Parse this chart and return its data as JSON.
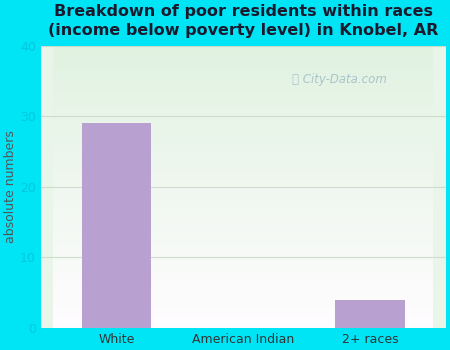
{
  "categories": [
    "White",
    "American Indian",
    "2+ races"
  ],
  "values": [
    29,
    0,
    4
  ],
  "bar_color": "#b8a0d0",
  "title": "Breakdown of poor residents within races\n(income below poverty level) in Knobel, AR",
  "ylabel": "absolute numbers",
  "ylim": [
    0,
    40
  ],
  "yticks": [
    0,
    10,
    20,
    30,
    40
  ],
  "background_outer": "#00e5f5",
  "plot_bg_topleft": "#d8f0d8",
  "plot_bg_bottomright": "#f8fcf8",
  "grid_color": "#e0ece0",
  "title_fontsize": 11.5,
  "ylabel_fontsize": 9,
  "tick_fontsize": 9,
  "tick_color": "#00c8e0",
  "watermark_text": "City-Data.com",
  "watermark_color": "#a0bcc8"
}
